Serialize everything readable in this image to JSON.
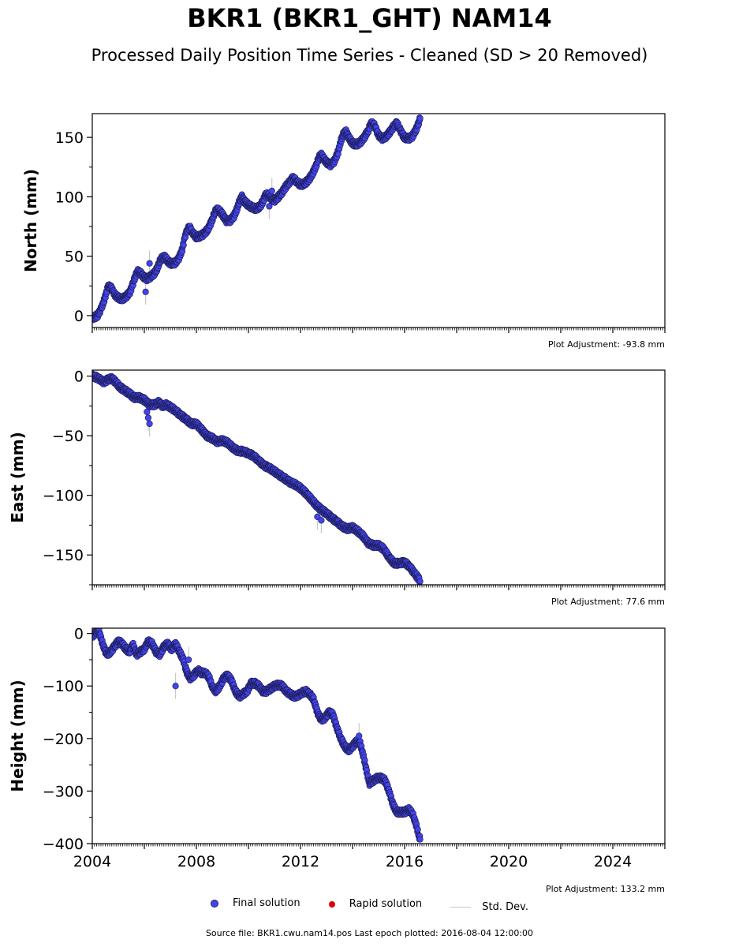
{
  "title": "BKR1 (BKR1_GHT) NAM14",
  "subtitle": "Processed Daily Position Time Series - Cleaned (SD > 20 Removed)",
  "source_text": "Source file: BKR1.cwu.nam14.pos  Last epoch plotted: 2016-08-04 12:00:00",
  "legend": {
    "final_label": "Final solution",
    "rapid_label": "Rapid solution",
    "stddev_label": "Std. Dev.",
    "final_color": "#4444ee",
    "rapid_color": "#dd0000",
    "stddev_color": "#c8c8c8"
  },
  "chart_data": [
    {
      "type": "scatter",
      "component": "north",
      "ylabel": "North (mm)",
      "adjustment_text": "Plot Adjustment: -93.8 mm",
      "xlim": [
        2004,
        2026
      ],
      "ylim": [
        -10,
        170
      ],
      "yticks": [
        0,
        50,
        100,
        150
      ],
      "x_tick_labels": [],
      "points": [
        [
          2004.0,
          -2
        ],
        [
          2004.2,
          0
        ],
        [
          2004.35,
          6
        ],
        [
          2004.5,
          16
        ],
        [
          2004.6,
          24
        ],
        [
          2004.7,
          25
        ],
        [
          2004.8,
          20
        ],
        [
          2004.9,
          17
        ],
        [
          2005.0,
          15
        ],
        [
          2005.15,
          14
        ],
        [
          2005.3,
          16
        ],
        [
          2005.45,
          20
        ],
        [
          2005.55,
          26
        ],
        [
          2005.65,
          33
        ],
        [
          2005.75,
          37
        ],
        [
          2005.85,
          36
        ],
        [
          2005.95,
          33
        ],
        [
          2006.1,
          31
        ],
        [
          2006.25,
          33
        ],
        [
          2006.4,
          36
        ],
        [
          2006.5,
          40
        ],
        [
          2006.6,
          46
        ],
        [
          2006.7,
          49
        ],
        [
          2006.8,
          49
        ],
        [
          2006.9,
          46
        ],
        [
          2007.0,
          44
        ],
        [
          2007.15,
          44
        ],
        [
          2007.3,
          47
        ],
        [
          2007.45,
          55
        ],
        [
          2007.55,
          65
        ],
        [
          2007.65,
          73
        ],
        [
          2007.75,
          74
        ],
        [
          2007.85,
          70
        ],
        [
          2008.0,
          66
        ],
        [
          2008.15,
          67
        ],
        [
          2008.3,
          69
        ],
        [
          2008.45,
          73
        ],
        [
          2008.6,
          80
        ],
        [
          2008.7,
          87
        ],
        [
          2008.8,
          89
        ],
        [
          2008.9,
          88
        ],
        [
          2009.0,
          85
        ],
        [
          2009.15,
          80
        ],
        [
          2009.3,
          80
        ],
        [
          2009.45,
          84
        ],
        [
          2009.55,
          89
        ],
        [
          2009.65,
          96
        ],
        [
          2009.75,
          100
        ],
        [
          2009.85,
          96
        ],
        [
          2010.0,
          93
        ],
        [
          2010.15,
          91
        ],
        [
          2010.3,
          90
        ],
        [
          2010.45,
          92
        ],
        [
          2010.55,
          96
        ],
        [
          2010.65,
          101
        ],
        [
          2010.75,
          102
        ],
        [
          2010.85,
          99
        ],
        [
          2011.0,
          97
        ],
        [
          2011.15,
          100
        ],
        [
          2011.3,
          104
        ],
        [
          2011.45,
          109
        ],
        [
          2011.6,
          113
        ],
        [
          2011.7,
          116
        ],
        [
          2011.85,
          113
        ],
        [
          2012.0,
          110
        ],
        [
          2012.15,
          111
        ],
        [
          2012.3,
          114
        ],
        [
          2012.45,
          119
        ],
        [
          2012.6,
          126
        ],
        [
          2012.7,
          133
        ],
        [
          2012.8,
          135
        ],
        [
          2012.9,
          132
        ],
        [
          2013.0,
          129
        ],
        [
          2013.15,
          127
        ],
        [
          2013.3,
          130
        ],
        [
          2013.45,
          138
        ],
        [
          2013.55,
          147
        ],
        [
          2013.65,
          153
        ],
        [
          2013.75,
          155
        ],
        [
          2013.85,
          150
        ],
        [
          2014.0,
          145
        ],
        [
          2014.15,
          144
        ],
        [
          2014.3,
          146
        ],
        [
          2014.45,
          150
        ],
        [
          2014.6,
          156
        ],
        [
          2014.7,
          161
        ],
        [
          2014.8,
          162
        ],
        [
          2014.9,
          157
        ],
        [
          2015.0,
          152
        ],
        [
          2015.15,
          149
        ],
        [
          2015.3,
          151
        ],
        [
          2015.45,
          155
        ],
        [
          2015.6,
          160
        ],
        [
          2015.7,
          162
        ],
        [
          2015.8,
          158
        ],
        [
          2015.9,
          153
        ],
        [
          2016.0,
          150
        ],
        [
          2016.15,
          149
        ],
        [
          2016.3,
          151
        ],
        [
          2016.45,
          157
        ],
        [
          2016.55,
          163
        ],
        [
          2016.6,
          166
        ]
      ],
      "outliers": [
        [
          2006.05,
          20
        ],
        [
          2006.2,
          44
        ],
        [
          2010.8,
          92
        ],
        [
          2010.9,
          105
        ]
      ]
    },
    {
      "type": "scatter",
      "component": "east",
      "ylabel": "East (mm)",
      "adjustment_text": "Plot Adjustment: 77.6 mm",
      "xlim": [
        2004,
        2026
      ],
      "ylim": [
        -175,
        5
      ],
      "yticks": [
        0,
        -50,
        -100,
        -150
      ],
      "x_tick_labels": [],
      "points": [
        [
          2004.0,
          0
        ],
        [
          2004.15,
          -1
        ],
        [
          2004.3,
          -3
        ],
        [
          2004.45,
          -5
        ],
        [
          2004.6,
          -3
        ],
        [
          2004.75,
          -2
        ],
        [
          2004.9,
          -5
        ],
        [
          2005.05,
          -9
        ],
        [
          2005.25,
          -12
        ],
        [
          2005.45,
          -15
        ],
        [
          2005.6,
          -18
        ],
        [
          2005.8,
          -18
        ],
        [
          2006.0,
          -20
        ],
        [
          2006.2,
          -24
        ],
        [
          2006.4,
          -24
        ],
        [
          2006.55,
          -22
        ],
        [
          2006.7,
          -25
        ],
        [
          2006.85,
          -24
        ],
        [
          2007.0,
          -26
        ],
        [
          2007.2,
          -29
        ],
        [
          2007.4,
          -33
        ],
        [
          2007.6,
          -36
        ],
        [
          2007.8,
          -40
        ],
        [
          2008.0,
          -40
        ],
        [
          2008.2,
          -45
        ],
        [
          2008.4,
          -50
        ],
        [
          2008.6,
          -52
        ],
        [
          2008.8,
          -55
        ],
        [
          2009.0,
          -54
        ],
        [
          2009.2,
          -56
        ],
        [
          2009.4,
          -60
        ],
        [
          2009.6,
          -63
        ],
        [
          2009.8,
          -63
        ],
        [
          2010.0,
          -65
        ],
        [
          2010.2,
          -67
        ],
        [
          2010.4,
          -71
        ],
        [
          2010.6,
          -75
        ],
        [
          2010.8,
          -77
        ],
        [
          2011.0,
          -80
        ],
        [
          2011.2,
          -83
        ],
        [
          2011.4,
          -86
        ],
        [
          2011.6,
          -89
        ],
        [
          2011.8,
          -91
        ],
        [
          2012.0,
          -94
        ],
        [
          2012.2,
          -98
        ],
        [
          2012.4,
          -103
        ],
        [
          2012.6,
          -108
        ],
        [
          2012.8,
          -112
        ],
        [
          2013.0,
          -115
        ],
        [
          2013.2,
          -119
        ],
        [
          2013.4,
          -122
        ],
        [
          2013.6,
          -126
        ],
        [
          2013.8,
          -128
        ],
        [
          2014.0,
          -127
        ],
        [
          2014.2,
          -130
        ],
        [
          2014.4,
          -134
        ],
        [
          2014.6,
          -140
        ],
        [
          2014.8,
          -142
        ],
        [
          2015.0,
          -142
        ],
        [
          2015.2,
          -145
        ],
        [
          2015.4,
          -152
        ],
        [
          2015.6,
          -157
        ],
        [
          2015.8,
          -157
        ],
        [
          2016.0,
          -156
        ],
        [
          2016.2,
          -160
        ],
        [
          2016.4,
          -166
        ],
        [
          2016.55,
          -170
        ],
        [
          2016.6,
          -172
        ]
      ],
      "outliers": [
        [
          2006.1,
          -30
        ],
        [
          2006.15,
          -35
        ],
        [
          2006.2,
          -40
        ],
        [
          2012.65,
          -118
        ],
        [
          2012.8,
          -121
        ]
      ]
    },
    {
      "type": "scatter",
      "component": "height",
      "ylabel": "Height (mm)",
      "adjustment_text": "Plot Adjustment: 133.2 mm",
      "xlim": [
        2004,
        2026
      ],
      "ylim": [
        -400,
        10
      ],
      "yticks": [
        0,
        -100,
        -200,
        -300,
        -400
      ],
      "x_tick_labels": [
        "2004",
        "2008",
        "2012",
        "2016",
        "2020",
        "2024"
      ],
      "points": [
        [
          2004.0,
          -5
        ],
        [
          2004.1,
          0
        ],
        [
          2004.25,
          5
        ],
        [
          2004.4,
          -20
        ],
        [
          2004.55,
          -40
        ],
        [
          2004.7,
          -35
        ],
        [
          2004.85,
          -25
        ],
        [
          2005.0,
          -15
        ],
        [
          2005.15,
          -20
        ],
        [
          2005.3,
          -30
        ],
        [
          2005.45,
          -35
        ],
        [
          2005.55,
          -20
        ],
        [
          2005.7,
          -40
        ],
        [
          2005.85,
          -35
        ],
        [
          2006.0,
          -30
        ],
        [
          2006.15,
          -15
        ],
        [
          2006.3,
          -20
        ],
        [
          2006.45,
          -35
        ],
        [
          2006.6,
          -40
        ],
        [
          2006.75,
          -25
        ],
        [
          2006.9,
          -20
        ],
        [
          2007.05,
          -30
        ],
        [
          2007.2,
          -20
        ],
        [
          2007.35,
          -35
        ],
        [
          2007.5,
          -50
        ],
        [
          2007.6,
          -70
        ],
        [
          2007.75,
          -85
        ],
        [
          2007.9,
          -80
        ],
        [
          2008.05,
          -70
        ],
        [
          2008.2,
          -75
        ],
        [
          2008.35,
          -75
        ],
        [
          2008.5,
          -85
        ],
        [
          2008.6,
          -100
        ],
        [
          2008.75,
          -110
        ],
        [
          2008.9,
          -100
        ],
        [
          2009.05,
          -85
        ],
        [
          2009.2,
          -80
        ],
        [
          2009.35,
          -90
        ],
        [
          2009.5,
          -110
        ],
        [
          2009.65,
          -120
        ],
        [
          2009.8,
          -115
        ],
        [
          2009.95,
          -110
        ],
        [
          2010.1,
          -95
        ],
        [
          2010.25,
          -95
        ],
        [
          2010.4,
          -100
        ],
        [
          2010.55,
          -110
        ],
        [
          2010.7,
          -110
        ],
        [
          2010.85,
          -105
        ],
        [
          2011.0,
          -100
        ],
        [
          2011.15,
          -98
        ],
        [
          2011.3,
          -100
        ],
        [
          2011.45,
          -110
        ],
        [
          2011.6,
          -115
        ],
        [
          2011.75,
          -120
        ],
        [
          2011.9,
          -118
        ],
        [
          2012.05,
          -113
        ],
        [
          2012.2,
          -110
        ],
        [
          2012.35,
          -115
        ],
        [
          2012.5,
          -125
        ],
        [
          2012.65,
          -150
        ],
        [
          2012.8,
          -165
        ],
        [
          2012.95,
          -160
        ],
        [
          2013.1,
          -150
        ],
        [
          2013.25,
          -155
        ],
        [
          2013.4,
          -180
        ],
        [
          2013.55,
          -200
        ],
        [
          2013.7,
          -215
        ],
        [
          2013.85,
          -222
        ],
        [
          2014.0,
          -215
        ],
        [
          2014.15,
          -205
        ],
        [
          2014.3,
          -210
        ],
        [
          2014.45,
          -240
        ],
        [
          2014.55,
          -265
        ],
        [
          2014.65,
          -285
        ],
        [
          2014.8,
          -280
        ],
        [
          2014.95,
          -275
        ],
        [
          2015.1,
          -275
        ],
        [
          2015.25,
          -280
        ],
        [
          2015.4,
          -300
        ],
        [
          2015.55,
          -325
        ],
        [
          2015.7,
          -340
        ],
        [
          2015.85,
          -340
        ],
        [
          2016.0,
          -340
        ],
        [
          2016.15,
          -335
        ],
        [
          2016.3,
          -342
        ],
        [
          2016.45,
          -365
        ],
        [
          2016.55,
          -385
        ],
        [
          2016.6,
          -392
        ]
      ],
      "outliers": [
        [
          2007.2,
          -100
        ],
        [
          2007.7,
          -50
        ],
        [
          2014.25,
          -195
        ]
      ]
    }
  ]
}
